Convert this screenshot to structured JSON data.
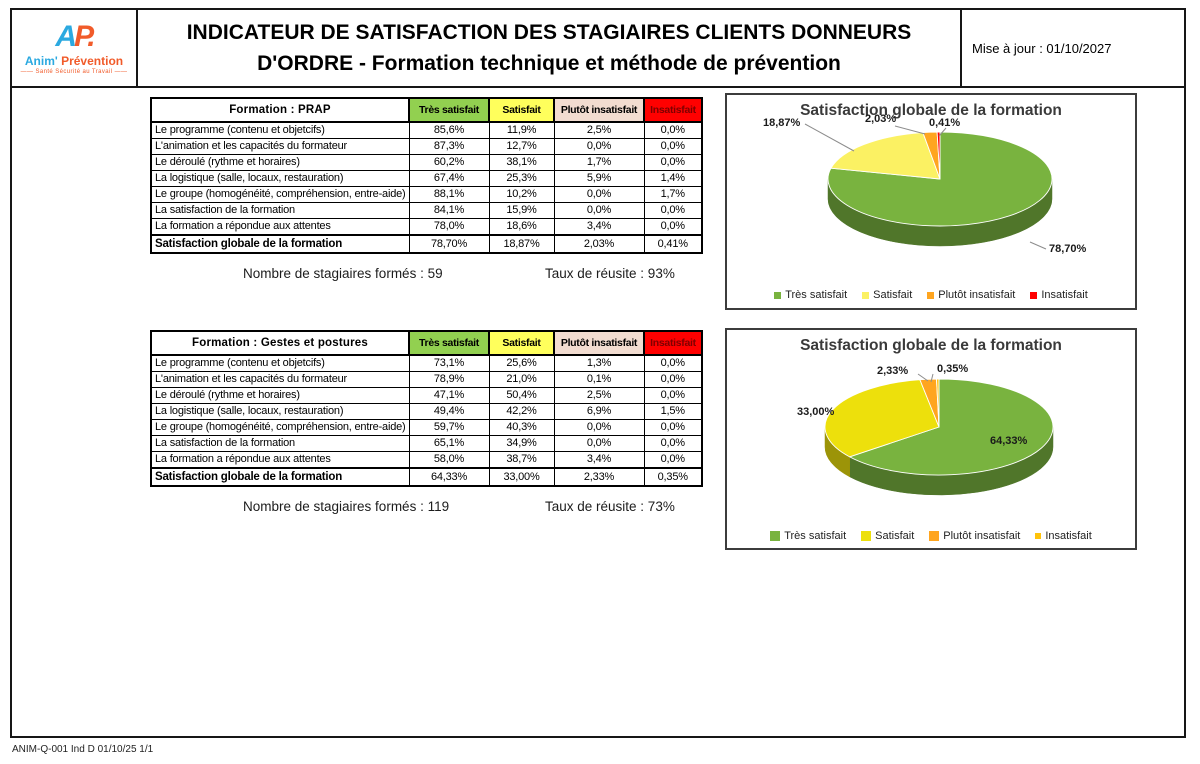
{
  "header": {
    "logo": {
      "mark_a": "A",
      "mark_p": "P.",
      "name_part1": "Anim'",
      "name_part2": " Prévention",
      "tagline": "—— Santé Sécurité au Travail ——"
    },
    "title_line1": "INDICATEUR DE SATISFACTION DES STAGIAIRES CLIENTS DONNEURS",
    "title_line2": "D'ORDRE - Formation technique et méthode de prévention",
    "updated": "Mise à jour : 01/10/2027"
  },
  "columns": [
    {
      "label": "Très satisfait",
      "bg": "#92D050",
      "fg": "#000000"
    },
    {
      "label": "Satisfait",
      "bg": "#FFFF5C",
      "fg": "#000000"
    },
    {
      "label": "Plutôt insatisfait",
      "bg": "#F2DCD0",
      "fg": "#000000"
    },
    {
      "label": "Insatisfait",
      "bg": "#FF0000",
      "fg": "#7F0000"
    }
  ],
  "tables": [
    {
      "title": "Formation : PRAP",
      "rows": [
        {
          "label": "Le programme (contenu et objetcifs)",
          "values": [
            "85,6%",
            "11,9%",
            "2,5%",
            "0,0%"
          ]
        },
        {
          "label": "L'animation et les capacités du formateur",
          "values": [
            "87,3%",
            "12,7%",
            "0,0%",
            "0,0%"
          ]
        },
        {
          "label": "Le déroulé (rythme et horaires)",
          "values": [
            "60,2%",
            "38,1%",
            "1,7%",
            "0,0%"
          ]
        },
        {
          "label": "La logistique (salle, locaux, restauration)",
          "values": [
            "67,4%",
            "25,3%",
            "5,9%",
            "1,4%"
          ]
        },
        {
          "label": "Le groupe (homogénéité, compréhension, entre-aide)",
          "values": [
            "88,1%",
            "10,2%",
            "0,0%",
            "1,7%"
          ]
        },
        {
          "label": "La satisfaction de la formation",
          "values": [
            "84,1%",
            "15,9%",
            "0,0%",
            "0,0%"
          ]
        },
        {
          "label": "La formation a répondue aux attentes",
          "values": [
            "78,0%",
            "18,6%",
            "3,4%",
            "0,0%"
          ]
        }
      ],
      "total": {
        "label": "Satisfaction globale de la formation",
        "values": [
          "78,70%",
          "18,87%",
          "2,03%",
          "0,41%"
        ]
      },
      "stats": {
        "trained": "Nombre de stagiaires formés : 59",
        "success": "Taux de réusite : 93%"
      }
    },
    {
      "title": "Formation : Gestes et postures",
      "rows": [
        {
          "label": "Le programme (contenu et objetcifs)",
          "values": [
            "73,1%",
            "25,6%",
            "1,3%",
            "0,0%"
          ]
        },
        {
          "label": "L'animation et les capacités du formateur",
          "values": [
            "78,9%",
            "21,0%",
            "0,1%",
            "0,0%"
          ]
        },
        {
          "label": "Le déroulé (rythme et horaires)",
          "values": [
            "47,1%",
            "50,4%",
            "2,5%",
            "0,0%"
          ]
        },
        {
          "label": "La logistique (salle, locaux, restauration)",
          "values": [
            "49,4%",
            "42,2%",
            "6,9%",
            "1,5%"
          ]
        },
        {
          "label": "Le groupe (homogénéité, compréhension, entre-aide)",
          "values": [
            "59,7%",
            "40,3%",
            "0,0%",
            "0,0%"
          ]
        },
        {
          "label": "La satisfaction de la formation",
          "values": [
            "65,1%",
            "34,9%",
            "0,0%",
            "0,0%"
          ]
        },
        {
          "label": "La formation a répondue aux attentes",
          "values": [
            "58,0%",
            "38,7%",
            "3,4%",
            "0,0%"
          ]
        }
      ],
      "total": {
        "label": "Satisfaction globale de la formation",
        "values": [
          "64,33%",
          "33,00%",
          "2,33%",
          "0,35%"
        ]
      },
      "stats": {
        "trained": "Nombre de stagiaires formés : 119",
        "success": "Taux de réusite : 73%"
      }
    }
  ],
  "chart_data": [
    {
      "type": "pie",
      "title": "Satisfaction globale de la formation",
      "legend_position": "bottom",
      "slices": [
        {
          "name": "Très satisfait",
          "value": 78.7,
          "label": "78,70%",
          "color": "#79B33F"
        },
        {
          "name": "Satisfait",
          "value": 18.87,
          "label": "18,87%",
          "color": "#FBF163"
        },
        {
          "name": "Plutôt insatisfait",
          "value": 2.03,
          "label": "2,03%",
          "color": "#FFA51F"
        },
        {
          "name": "Insatisfait",
          "value": 0.41,
          "label": "0,41%",
          "color": "#FF0000"
        }
      ]
    },
    {
      "type": "pie",
      "title": "Satisfaction globale de la formation",
      "legend_position": "bottom",
      "slices": [
        {
          "name": "Très satisfait",
          "value": 64.33,
          "label": "64,33%",
          "color": "#79B33F"
        },
        {
          "name": "Satisfait",
          "value": 33.0,
          "label": "33,00%",
          "color": "#EDE00C"
        },
        {
          "name": "Plutôt insatisfait",
          "value": 2.33,
          "label": "2,33%",
          "color": "#FFA51F"
        },
        {
          "name": "Insatisfait",
          "value": 0.35,
          "label": "0,35%",
          "color": "#FFC30B"
        }
      ]
    }
  ],
  "footer": "ANIM-Q-001 Ind D 01/10/25 1/1"
}
